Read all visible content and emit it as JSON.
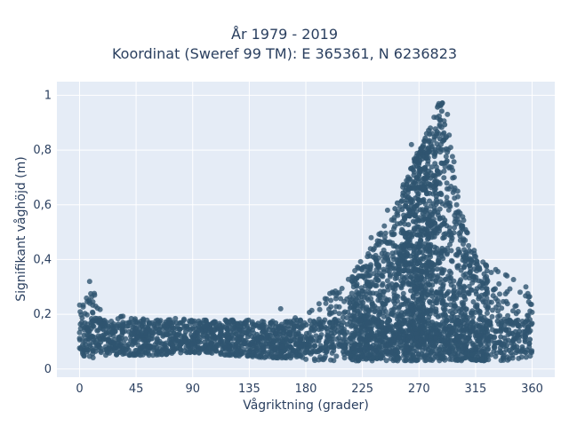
{
  "chart_data": {
    "type": "scatter",
    "title": "År 1979 - 2019",
    "subtitle": "Koordinat (Sweref 99 TM): E 365361, N 6236823",
    "xlabel": "Vågriktning (grader)",
    "ylabel": "Signifikant våghöjd (m)",
    "xlim": [
      -18,
      378
    ],
    "ylim": [
      -0.03,
      1.05
    ],
    "x_ticks": [
      0,
      45,
      90,
      135,
      180,
      225,
      270,
      315,
      360
    ],
    "x_tick_labels": [
      "0",
      "45",
      "90",
      "135",
      "180",
      "225",
      "270",
      "315",
      "360"
    ],
    "y_ticks": [
      0,
      0.2,
      0.4,
      0.6,
      0.8,
      1
    ],
    "y_tick_labels": [
      "0",
      "0,2",
      "0,4",
      "0,6",
      "0,8",
      "1"
    ],
    "grid": true,
    "marker_color": "#2f5570",
    "background_color": "#e5ecf6",
    "envelope": {
      "direction": [
        0,
        10,
        20,
        40,
        60,
        90,
        120,
        150,
        170,
        190,
        205,
        220,
        235,
        250,
        262,
        272,
        280,
        285,
        290,
        295,
        300,
        305,
        315,
        330,
        345,
        355,
        360
      ],
      "min_height": [
        0.05,
        0.04,
        0.05,
        0.05,
        0.05,
        0.06,
        0.05,
        0.04,
        0.04,
        0.03,
        0.03,
        0.03,
        0.03,
        0.03,
        0.03,
        0.03,
        0.03,
        0.03,
        0.03,
        0.03,
        0.03,
        0.03,
        0.03,
        0.03,
        0.03,
        0.04,
        0.05
      ],
      "max_height": [
        0.24,
        0.3,
        0.2,
        0.19,
        0.19,
        0.18,
        0.18,
        0.18,
        0.19,
        0.24,
        0.3,
        0.38,
        0.47,
        0.58,
        0.73,
        0.82,
        0.9,
        0.98,
        1.0,
        0.88,
        0.68,
        0.55,
        0.42,
        0.37,
        0.33,
        0.29,
        0.26
      ]
    },
    "outliers": [
      [
        8,
        0.32
      ],
      [
        264,
        0.82
      ],
      [
        276,
        0.86
      ],
      [
        282,
        0.92
      ],
      [
        232,
        0.48
      ],
      [
        245,
        0.58
      ],
      [
        298,
        0.7
      ],
      [
        308,
        0.5
      ],
      [
        340,
        0.34
      ],
      [
        355,
        0.3
      ],
      [
        12,
        0.27
      ],
      [
        160,
        0.22
      ]
    ]
  }
}
